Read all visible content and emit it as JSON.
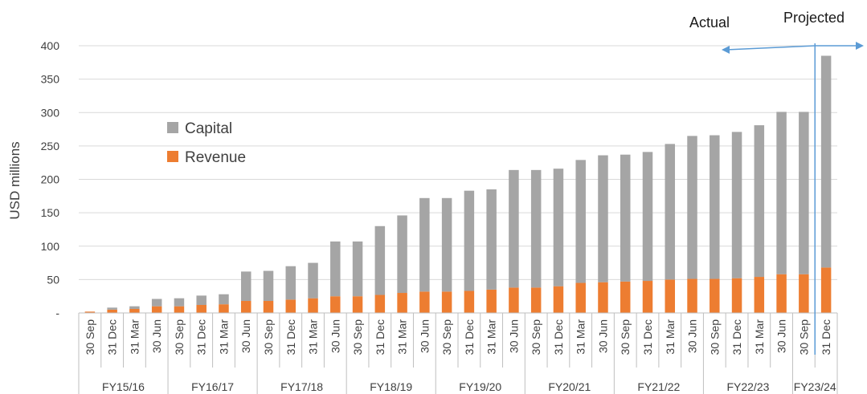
{
  "chart_data": {
    "type": "bar",
    "stacked": true,
    "ylabel": "USD millions",
    "ylim": [
      0,
      400
    ],
    "yticks": [
      0,
      50,
      100,
      150,
      200,
      250,
      300,
      350,
      400
    ],
    "ytick_labels": [
      "-",
      "50",
      "100",
      "150",
      "200",
      "250",
      "300",
      "350",
      "400"
    ],
    "grid": true,
    "legend": "middle-left",
    "categories": [
      "30 Sep",
      "31 Dec",
      "31 Mar",
      "30 Jun",
      "30 Sep",
      "31 Dec",
      "31 Mar",
      "30 Jun",
      "30 Sep",
      "31 Dec",
      "31 Mar",
      "30 Jun",
      "30 Sep",
      "31 Dec",
      "31 Mar",
      "30 Jun",
      "30 Sep",
      "31 Dec",
      "31 Mar",
      "30 Jun",
      "30 Sep",
      "31 Dec",
      "31 Mar",
      "30 Jun",
      "30 Sep",
      "31 Dec",
      "31 Mar",
      "30 Jun",
      "30 Sep",
      "31 Dec",
      "31 Mar",
      "30 Jun",
      "30 Sep",
      "31 Dec"
    ],
    "groups": [
      {
        "label": "FY15/16",
        "count": 4
      },
      {
        "label": "FY16/17",
        "count": 4
      },
      {
        "label": "FY17/18",
        "count": 4
      },
      {
        "label": "FY18/19",
        "count": 4
      },
      {
        "label": "FY19/20",
        "count": 4
      },
      {
        "label": "FY20/21",
        "count": 4
      },
      {
        "label": "FY21/22",
        "count": 4
      },
      {
        "label": "FY22/23",
        "count": 4
      },
      {
        "label": "FY23/24",
        "count": 2
      }
    ],
    "series": [
      {
        "name": "Revenue",
        "color": "#ED7D31",
        "values": [
          2,
          5,
          6,
          10,
          10,
          12,
          13,
          18,
          18,
          20,
          22,
          25,
          25,
          27,
          30,
          32,
          32,
          33,
          35,
          38,
          38,
          40,
          45,
          46,
          47,
          48,
          50,
          51,
          51,
          52,
          54,
          58,
          58,
          68
        ]
      },
      {
        "name": "Capital",
        "color": "#A5A5A5",
        "values": [
          0,
          3,
          4,
          11,
          12,
          14,
          15,
          44,
          45,
          50,
          53,
          82,
          82,
          103,
          116,
          140,
          140,
          150,
          150,
          176,
          176,
          176,
          184,
          190,
          190,
          193,
          203,
          214,
          215,
          219,
          227,
          243,
          243,
          317
        ]
      }
    ],
    "annotations": {
      "actual_label": "Actual",
      "projected_label": "Projected",
      "divider_after_category_index": 32,
      "line_color": "#5B9BD5"
    }
  }
}
